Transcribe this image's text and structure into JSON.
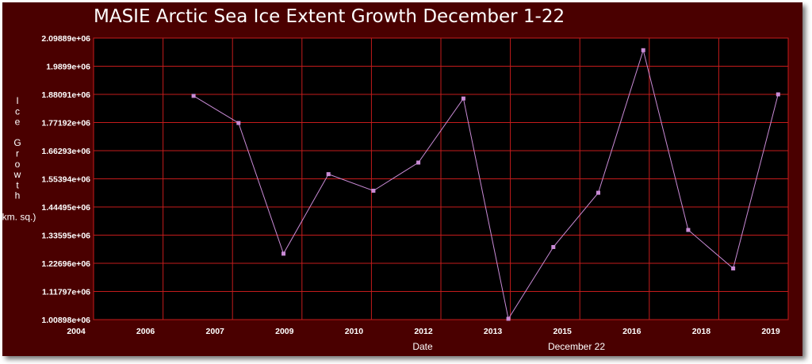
{
  "chart_data": {
    "type": "line",
    "title": "MASIE Arctic Sea Ice Extent Growth December 1-22",
    "xlabel": "Date",
    "xlabel_secondary": "December 22",
    "ylabel": "Ice Growth (km. sq.)",
    "ylabel_lines": [
      "I",
      "c",
      "e",
      "",
      "G",
      "r",
      "o",
      "w",
      "t",
      "h",
      "",
      "(km. sq.)"
    ],
    "x_tick_labels": [
      "2004",
      "2006",
      "2007",
      "2009",
      "2010",
      "2012",
      "2013",
      "2015",
      "2016",
      "2018",
      "2019"
    ],
    "y_tick_labels": [
      "1.00898e+06",
      "1.11797e+06",
      "1.22696e+06",
      "1.33595e+06",
      "1.44495e+06",
      "1.55394e+06",
      "1.66293e+06",
      "1.77192e+06",
      "1.88091e+06",
      "1.9899e+06",
      "2.09889e+06"
    ],
    "ylim": [
      1008980,
      2098890
    ],
    "x": [
      2006,
      2007,
      2008,
      2009,
      2010,
      2011,
      2012,
      2013,
      2014,
      2015,
      2016,
      2017,
      2018,
      2019
    ],
    "values": [
      1875000,
      1770000,
      1264000,
      1572000,
      1508000,
      1617000,
      1865000,
      1012000,
      1290000,
      1500000,
      2052000,
      1356000,
      1207000,
      1881000
    ],
    "grid": true,
    "colors": {
      "background": "#4a0000",
      "plot_background": "#000000",
      "grid": "#c41c1c",
      "line": "#c98bd6",
      "marker": "#c98bd6",
      "text": "#ffffff"
    }
  }
}
